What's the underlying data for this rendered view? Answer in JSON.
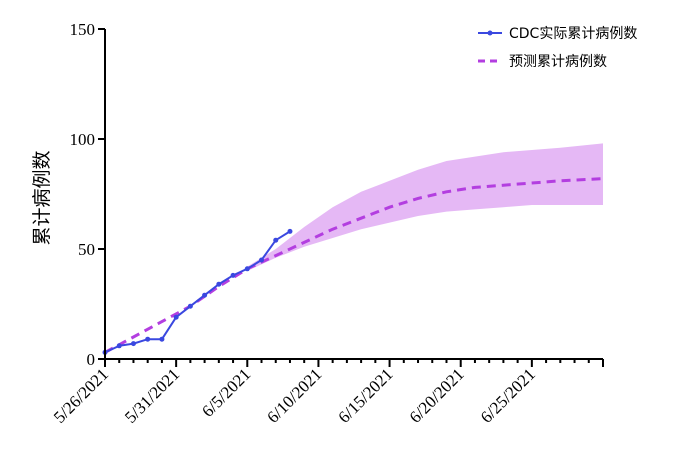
{
  "chart_data": {
    "type": "line",
    "title": "",
    "xlabel": "",
    "ylabel": "累计病例数",
    "x_start": "2021-05-26",
    "x_end": "2021-06-30",
    "ylim": [
      0,
      150
    ],
    "y_ticks": [
      0,
      50,
      100,
      150
    ],
    "y_tick_labels": [
      "0",
      "50",
      "100",
      "150"
    ],
    "x_ticks": [
      "2021-05-26",
      "2021-05-31",
      "2021-06-05",
      "2021-06-10",
      "2021-06-15",
      "2021-06-20",
      "2021-06-25"
    ],
    "x_tick_labels": [
      "5/26/2021",
      "5/31/2021",
      "6/5/2021",
      "6/10/2021",
      "6/15/2021",
      "6/20/2021",
      "6/25/2021"
    ],
    "grid": false,
    "legend_position": "top-right",
    "colors": {
      "actual": "#3a48e0",
      "predicted": "#b33ee0",
      "band": "#e5b8f5"
    },
    "series": [
      {
        "name": "CDC实际累计病例数",
        "style": "solid-with-markers",
        "x": [
          "2021-05-26",
          "2021-05-27",
          "2021-05-28",
          "2021-05-29",
          "2021-05-30",
          "2021-05-31",
          "2021-06-01",
          "2021-06-02",
          "2021-06-03",
          "2021-06-04",
          "2021-06-05",
          "2021-06-06",
          "2021-06-07",
          "2021-06-08",
          "2021-06-09"
        ],
        "y": [
          3,
          6,
          7,
          9,
          9,
          19,
          24,
          29,
          34,
          38,
          41,
          45,
          54,
          58,
          null
        ]
      },
      {
        "name": "预测累计病例数",
        "style": "dashed",
        "x": [
          "2021-05-26",
          "2021-05-28",
          "2021-05-30",
          "2021-06-01",
          "2021-06-03",
          "2021-06-05",
          "2021-06-07",
          "2021-06-09",
          "2021-06-11",
          "2021-06-13",
          "2021-06-15",
          "2021-06-17",
          "2021-06-19",
          "2021-06-21",
          "2021-06-23",
          "2021-06-25",
          "2021-06-27",
          "2021-06-30"
        ],
        "y": [
          3,
          10,
          17,
          24,
          33,
          41,
          47,
          53,
          59,
          64,
          69,
          73,
          76,
          78,
          79,
          80,
          81,
          82
        ]
      }
    ],
    "band": {
      "x": [
        "2021-06-05",
        "2021-06-07",
        "2021-06-09",
        "2021-06-11",
        "2021-06-13",
        "2021-06-15",
        "2021-06-17",
        "2021-06-19",
        "2021-06-21",
        "2021-06-23",
        "2021-06-25",
        "2021-06-27",
        "2021-06-30"
      ],
      "lower": [
        40,
        46,
        51,
        55,
        59,
        62,
        65,
        67,
        68,
        69,
        70,
        70,
        70
      ],
      "upper": [
        42,
        50,
        60,
        69,
        76,
        81,
        86,
        90,
        92,
        94,
        95,
        96,
        98
      ]
    }
  }
}
